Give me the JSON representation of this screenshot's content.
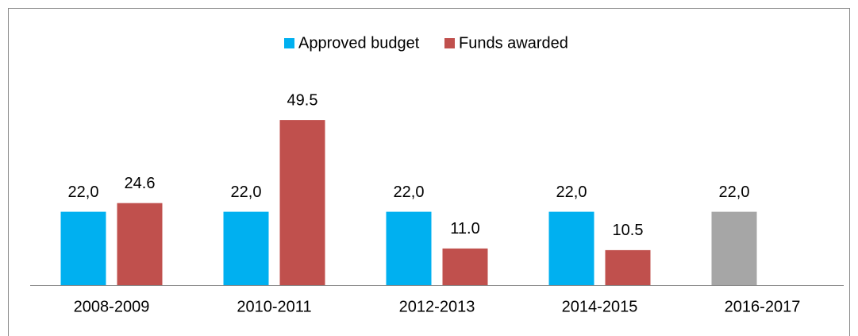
{
  "chart_data": {
    "type": "bar",
    "categories": [
      "2008-2009",
      "2010-2011",
      "2012-2013",
      "2014-2015",
      "2016-2017"
    ],
    "series": [
      {
        "name": "Approved budget",
        "color": "#00b0f0",
        "colors": [
          "#00b0f0",
          "#00b0f0",
          "#00b0f0",
          "#00b0f0",
          "#a6a6a6"
        ],
        "values": [
          22,
          22,
          22,
          22,
          22
        ],
        "value_labels": [
          "22,0",
          "22,0",
          "22,0",
          "22,0",
          "22,0"
        ]
      },
      {
        "name": "Funds awarded",
        "color": "#c0504d",
        "values": [
          24.6,
          49.5,
          11,
          10.5,
          null
        ],
        "value_labels": [
          "24.6",
          "49.5",
          "11.0",
          "10.5",
          null
        ]
      }
    ],
    "ylim": [
      0,
      60
    ],
    "legend": "top"
  }
}
